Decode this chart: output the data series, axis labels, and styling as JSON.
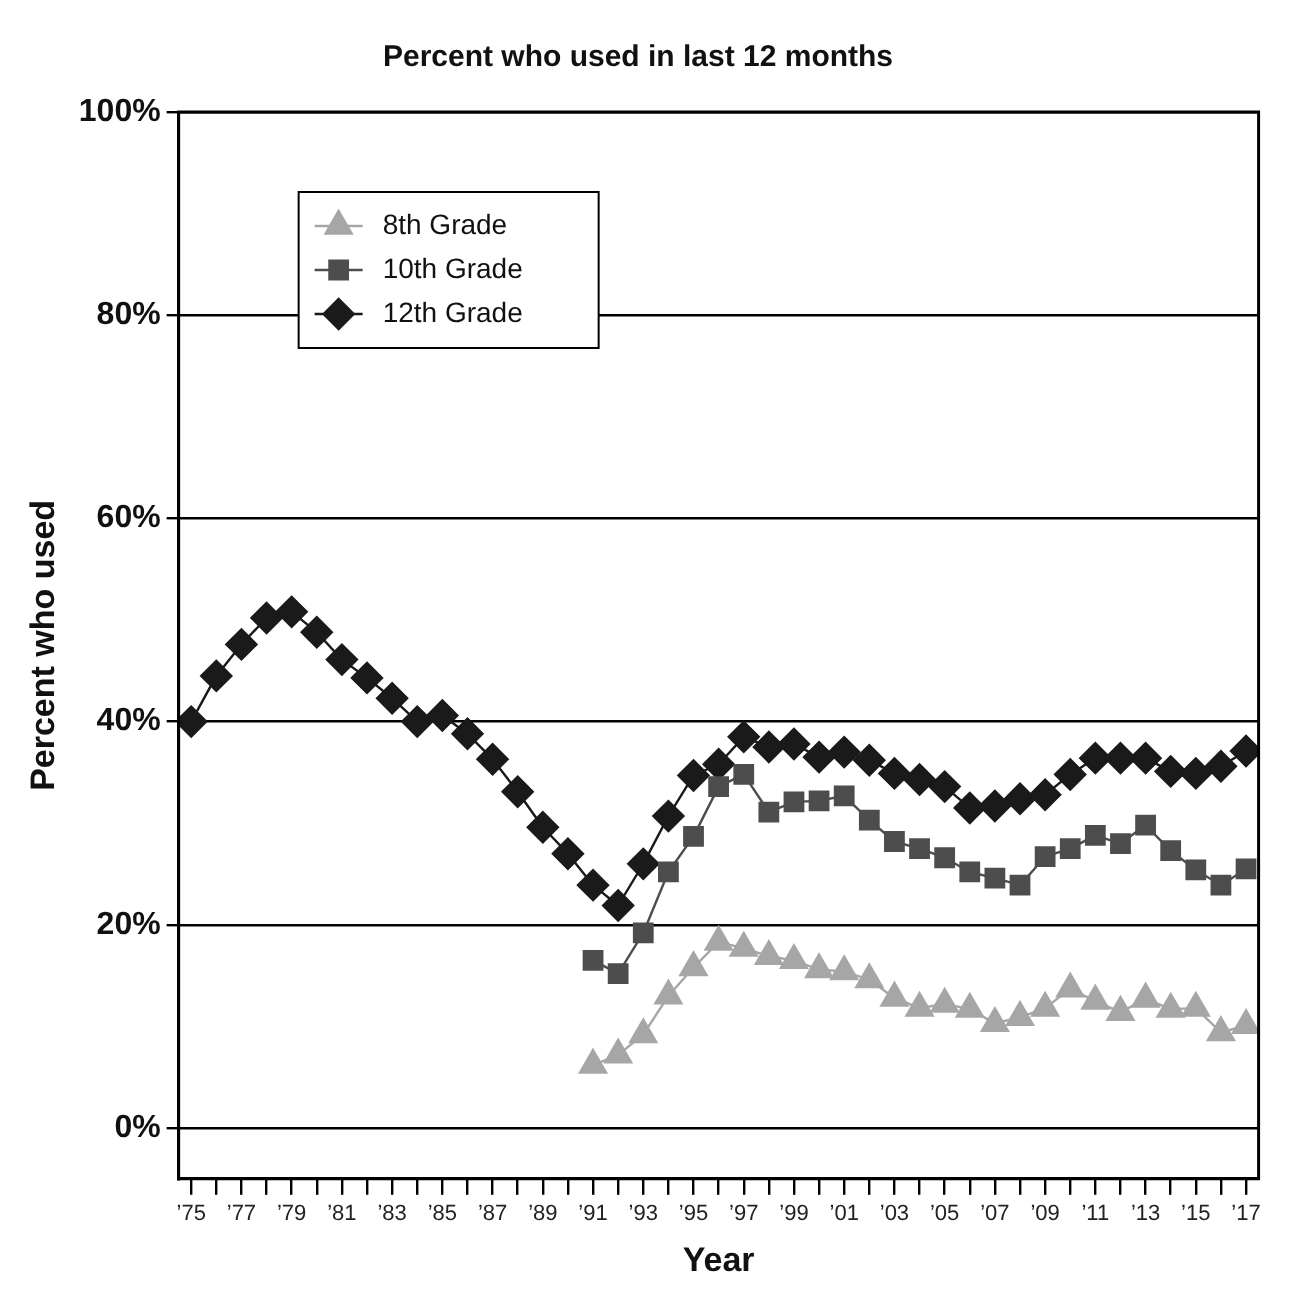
{
  "chart_data": {
    "type": "line",
    "title": "Percent who used in last 12 months",
    "xlabel": "Year",
    "ylabel": "Percent who used",
    "xlim": [
      1974.5,
      2017.5
    ],
    "xticks": [
      {
        "value": 1975,
        "label": "’75"
      },
      {
        "value": 1976,
        "label": null
      },
      {
        "value": 1977,
        "label": "’77"
      },
      {
        "value": 1978,
        "label": null
      },
      {
        "value": 1979,
        "label": "’79"
      },
      {
        "value": 1980,
        "label": null
      },
      {
        "value": 1981,
        "label": "’81"
      },
      {
        "value": 1982,
        "label": null
      },
      {
        "value": 1983,
        "label": "’83"
      },
      {
        "value": 1984,
        "label": null
      },
      {
        "value": 1985,
        "label": "’85"
      },
      {
        "value": 1986,
        "label": null
      },
      {
        "value": 1987,
        "label": "’87"
      },
      {
        "value": 1988,
        "label": null
      },
      {
        "value": 1989,
        "label": "’89"
      },
      {
        "value": 1990,
        "label": null
      },
      {
        "value": 1991,
        "label": "’91"
      },
      {
        "value": 1992,
        "label": null
      },
      {
        "value": 1993,
        "label": "’93"
      },
      {
        "value": 1994,
        "label": null
      },
      {
        "value": 1995,
        "label": "’95"
      },
      {
        "value": 1996,
        "label": null
      },
      {
        "value": 1997,
        "label": "’97"
      },
      {
        "value": 1998,
        "label": null
      },
      {
        "value": 1999,
        "label": "’99"
      },
      {
        "value": 2000,
        "label": null
      },
      {
        "value": 2001,
        "label": "’01"
      },
      {
        "value": 2002,
        "label": null
      },
      {
        "value": 2003,
        "label": "’03"
      },
      {
        "value": 2004,
        "label": null
      },
      {
        "value": 2005,
        "label": "’05"
      },
      {
        "value": 2006,
        "label": null
      },
      {
        "value": 2007,
        "label": "’07"
      },
      {
        "value": 2008,
        "label": null
      },
      {
        "value": 2009,
        "label": "’09"
      },
      {
        "value": 2010,
        "label": null
      },
      {
        "value": 2011,
        "label": "’11"
      },
      {
        "value": 2012,
        "label": null
      },
      {
        "value": 2013,
        "label": "’13"
      },
      {
        "value": 2014,
        "label": null
      },
      {
        "value": 2015,
        "label": "’15"
      },
      {
        "value": 2016,
        "label": null
      },
      {
        "value": 2017,
        "label": "’17"
      }
    ],
    "ylim": [
      -5,
      100
    ],
    "yticks": [
      {
        "value": 0,
        "label": "0%"
      },
      {
        "value": 20,
        "label": "20%"
      },
      {
        "value": 40,
        "label": "40%"
      },
      {
        "value": 60,
        "label": "60%"
      },
      {
        "value": 80,
        "label": "80%"
      },
      {
        "value": 100,
        "label": "100%"
      }
    ],
    "grid": "y",
    "legend": "top left",
    "line_style": "solid",
    "series": [
      {
        "name": "8th Grade",
        "color": "#a6a6a6",
        "marker": "triangle",
        "x": [
          1991,
          1992,
          1993,
          1994,
          1995,
          1996,
          1997,
          1998,
          1999,
          2000,
          2001,
          2002,
          2003,
          2004,
          2005,
          2006,
          2007,
          2008,
          2009,
          2010,
          2011,
          2012,
          2013,
          2014,
          2015,
          2016,
          2017
        ],
        "values": [
          6.2,
          7.2,
          9.2,
          13.0,
          15.8,
          18.3,
          17.7,
          16.9,
          16.5,
          15.6,
          15.4,
          14.6,
          12.8,
          11.8,
          12.2,
          11.7,
          10.3,
          10.9,
          11.8,
          13.7,
          12.5,
          11.4,
          12.7,
          11.7,
          11.8,
          9.4,
          10.1
        ]
      },
      {
        "name": "10th Grade",
        "color": "#4d4d4d",
        "marker": "square",
        "x": [
          1991,
          1992,
          1993,
          1994,
          1995,
          1996,
          1997,
          1998,
          1999,
          2000,
          2001,
          2002,
          2003,
          2004,
          2005,
          2006,
          2007,
          2008,
          2009,
          2010,
          2011,
          2012,
          2013,
          2014,
          2015,
          2016,
          2017
        ],
        "values": [
          16.5,
          15.2,
          19.2,
          25.2,
          28.7,
          33.6,
          34.8,
          31.1,
          32.1,
          32.2,
          32.7,
          30.3,
          28.2,
          27.5,
          26.6,
          25.2,
          24.6,
          23.9,
          26.7,
          27.5,
          28.8,
          28.0,
          29.8,
          27.3,
          25.4,
          23.9,
          25.5
        ]
      },
      {
        "name": "12th Grade",
        "color": "#1a1a1a",
        "marker": "diamond",
        "x": [
          1975,
          1976,
          1977,
          1978,
          1979,
          1980,
          1981,
          1982,
          1983,
          1984,
          1985,
          1986,
          1987,
          1988,
          1989,
          1990,
          1991,
          1992,
          1993,
          1994,
          1995,
          1996,
          1997,
          1998,
          1999,
          2000,
          2001,
          2002,
          2003,
          2004,
          2005,
          2006,
          2007,
          2008,
          2009,
          2010,
          2011,
          2012,
          2013,
          2014,
          2015,
          2016,
          2017
        ],
        "values": [
          40.0,
          44.5,
          47.6,
          50.2,
          50.8,
          48.8,
          46.1,
          44.3,
          42.3,
          40.0,
          40.6,
          38.8,
          36.3,
          33.1,
          29.6,
          27.0,
          23.9,
          21.9,
          26.0,
          30.7,
          34.7,
          35.8,
          38.5,
          37.5,
          37.8,
          36.5,
          37.0,
          36.2,
          34.9,
          34.3,
          33.6,
          31.5,
          31.7,
          32.4,
          32.8,
          34.8,
          36.4,
          36.4,
          36.4,
          35.1,
          34.9,
          35.6,
          37.1
        ]
      }
    ]
  }
}
